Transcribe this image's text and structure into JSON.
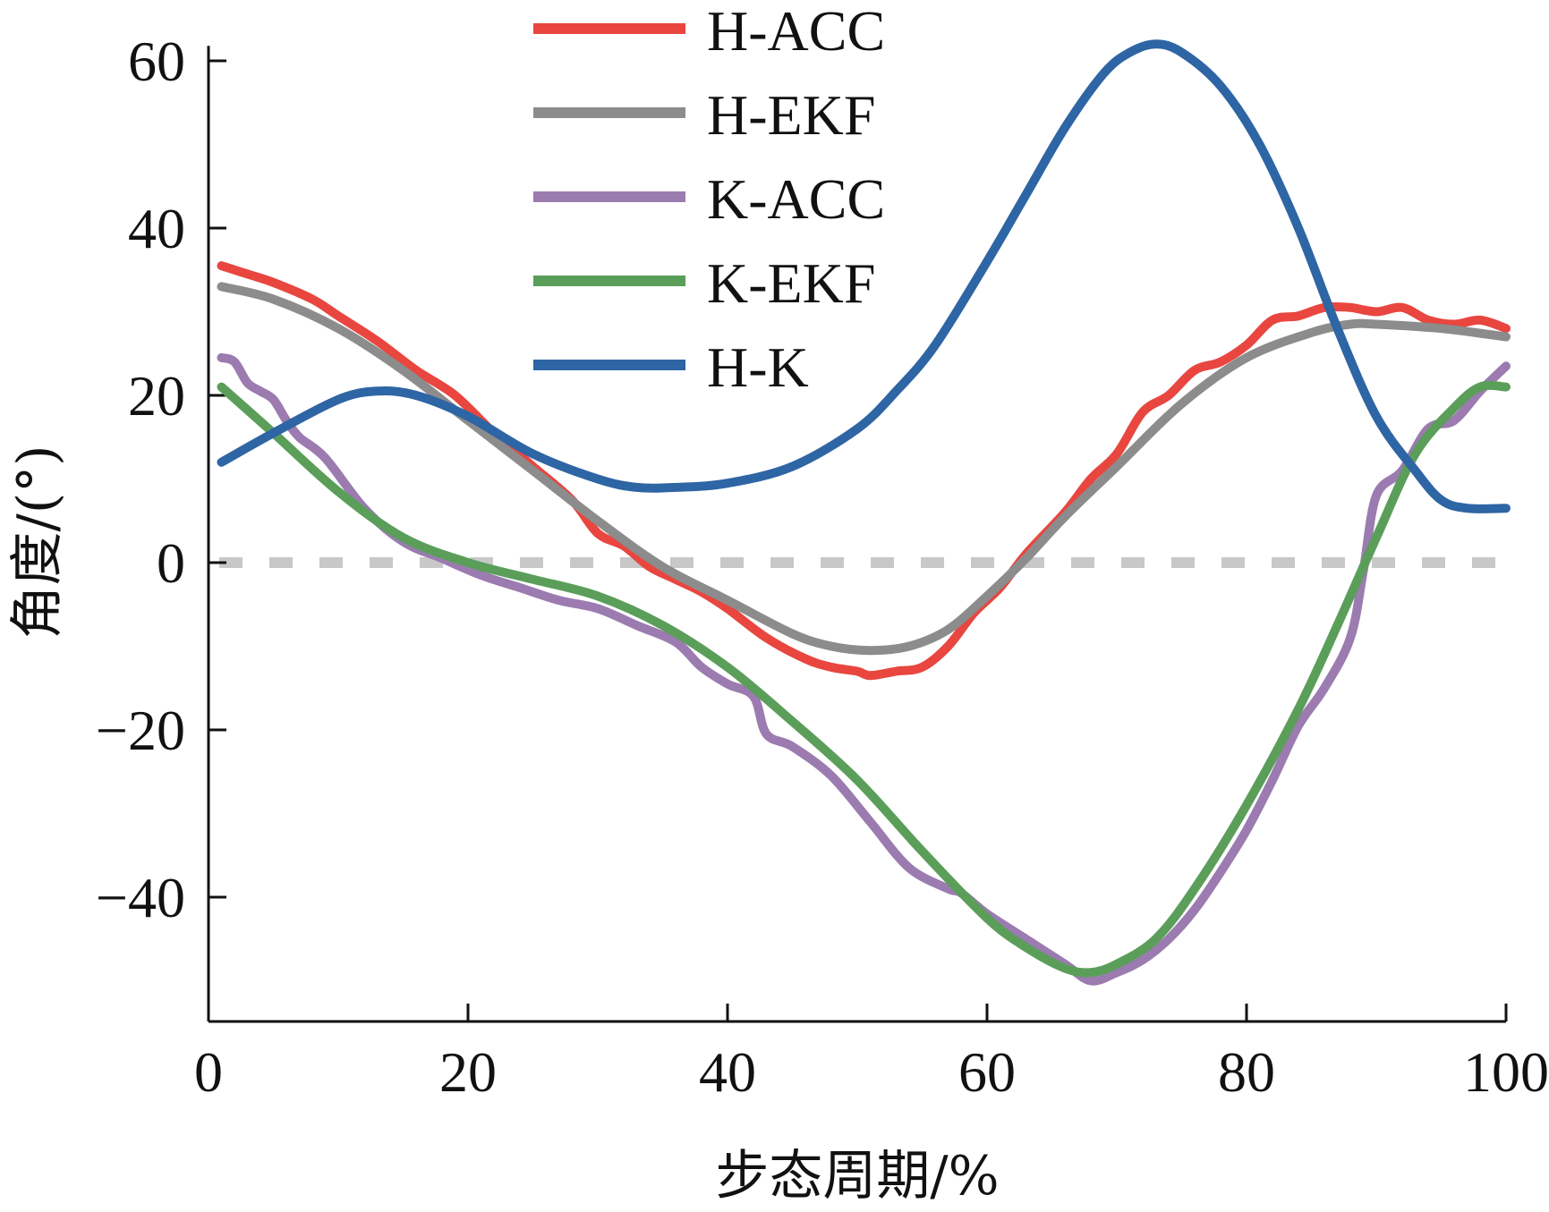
{
  "chart_data": {
    "type": "line",
    "title": "",
    "xlabel": "步态周期/%",
    "ylabel": "角度/(°)",
    "xlim": [
      0,
      100
    ],
    "ylim": [
      -55,
      62
    ],
    "xticks": [
      0,
      20,
      40,
      60,
      80,
      100
    ],
    "yticks": [
      -40,
      -20,
      0,
      20,
      40,
      60
    ],
    "tick_labels": {
      "x": [
        "0",
        "20",
        "40",
        "60",
        "80",
        "100"
      ],
      "y": [
        "−40",
        "−20",
        "0",
        "20",
        "40",
        "60"
      ]
    },
    "grid": false,
    "reference_line": {
      "y": 0,
      "style": "dashed",
      "color": "#c8c8c8"
    },
    "legend": {
      "position": "top-center"
    },
    "series": [
      {
        "name": "H-ACC",
        "color": "#e8463f",
        "x": [
          1,
          3,
          5,
          8,
          10,
          13,
          16,
          19,
          22,
          25,
          28,
          30,
          32,
          34,
          36,
          38,
          40,
          43,
          46,
          48,
          50,
          51,
          53,
          55,
          57,
          59,
          61,
          63,
          66,
          68,
          70,
          72,
          74,
          76,
          78,
          80,
          82,
          84,
          86,
          88,
          90,
          92,
          94,
          96,
          98,
          100
        ],
        "values": [
          35.5,
          34.5,
          33.5,
          31.5,
          29.5,
          26.5,
          23,
          20,
          15.5,
          11.5,
          7.5,
          3.5,
          2,
          -0.5,
          -2,
          -3.5,
          -5.5,
          -9,
          -11.5,
          -12.5,
          -13,
          -13.5,
          -13,
          -12.5,
          -10,
          -6,
          -3,
          1,
          6,
          10,
          13,
          18,
          20,
          23,
          24,
          26,
          29,
          29.5,
          30.5,
          30.5,
          30,
          30.5,
          29,
          28.5,
          29,
          28
        ]
      },
      {
        "name": "H-EKF",
        "color": "#8c8c8c",
        "x": [
          1,
          5,
          10,
          15,
          20,
          25,
          30,
          35,
          40,
          45,
          48,
          51,
          54,
          57,
          60,
          63,
          66,
          70,
          75,
          80,
          85,
          88,
          90,
          95,
          100
        ],
        "values": [
          33,
          31.5,
          28,
          23,
          17,
          11,
          5,
          -0.5,
          -4.5,
          -8.5,
          -10,
          -10.5,
          -10,
          -8,
          -4,
          0.5,
          5.5,
          11.5,
          19,
          24.5,
          27.5,
          28.5,
          28.5,
          28,
          27
        ]
      },
      {
        "name": "K-ACC",
        "color": "#9b7bb0",
        "x": [
          1,
          2,
          3,
          4,
          5,
          6,
          7,
          9,
          12,
          15,
          18,
          21,
          24,
          27,
          30,
          33,
          36,
          38,
          40,
          42,
          43,
          45,
          48,
          51,
          54,
          57,
          58,
          60,
          63,
          66,
          68,
          70,
          72,
          74,
          76,
          78,
          80,
          82,
          84,
          86,
          88,
          89,
          90,
          92,
          94,
          96,
          98,
          100
        ],
        "values": [
          24.5,
          24,
          21.5,
          20.5,
          19.5,
          17,
          15,
          12.5,
          6.5,
          2.5,
          0.5,
          -1.5,
          -3,
          -4.5,
          -5.5,
          -7.5,
          -9.5,
          -12.5,
          -14.5,
          -16,
          -20.5,
          -22,
          -25.5,
          -31,
          -36.5,
          -39,
          -39.5,
          -42,
          -45,
          -48,
          -50,
          -49,
          -47.5,
          -45,
          -41.5,
          -37,
          -32,
          -26,
          -19.5,
          -15,
          -9,
          -1,
          8,
          11,
          16,
          17,
          20.5,
          23.5
        ]
      },
      {
        "name": "K-EKF",
        "color": "#5a9e5a",
        "x": [
          1,
          5,
          10,
          15,
          20,
          25,
          30,
          35,
          40,
          45,
          50,
          55,
          60,
          63,
          66,
          68,
          70,
          73,
          76,
          80,
          84,
          87,
          90,
          93,
          96,
          98,
          100
        ],
        "values": [
          21,
          15.5,
          8.5,
          3,
          0,
          -2,
          -4,
          -7.5,
          -12.5,
          -19,
          -26,
          -34.5,
          -42.5,
          -46,
          -48.5,
          -49,
          -48,
          -45,
          -39,
          -29,
          -17.5,
          -7.5,
          3,
          13,
          18.5,
          21,
          21
        ]
      },
      {
        "name": "H-K",
        "color": "#2e65a4",
        "x": [
          1,
          5,
          10,
          13,
          16,
          20,
          25,
          30,
          33,
          36,
          40,
          45,
          50,
          53,
          56,
          60,
          63,
          66,
          69,
          71,
          73,
          75,
          78,
          81,
          84,
          87,
          90,
          93,
          95,
          97,
          100
        ],
        "values": [
          12,
          15.5,
          19.5,
          20.5,
          20,
          17.5,
          13,
          10,
          9,
          9,
          9.5,
          11.5,
          16,
          20.5,
          26,
          36,
          44,
          52,
          58.5,
          61,
          62,
          61,
          57,
          50,
          40,
          28,
          17.5,
          11,
          7.5,
          6.5,
          6.5
        ]
      }
    ]
  }
}
